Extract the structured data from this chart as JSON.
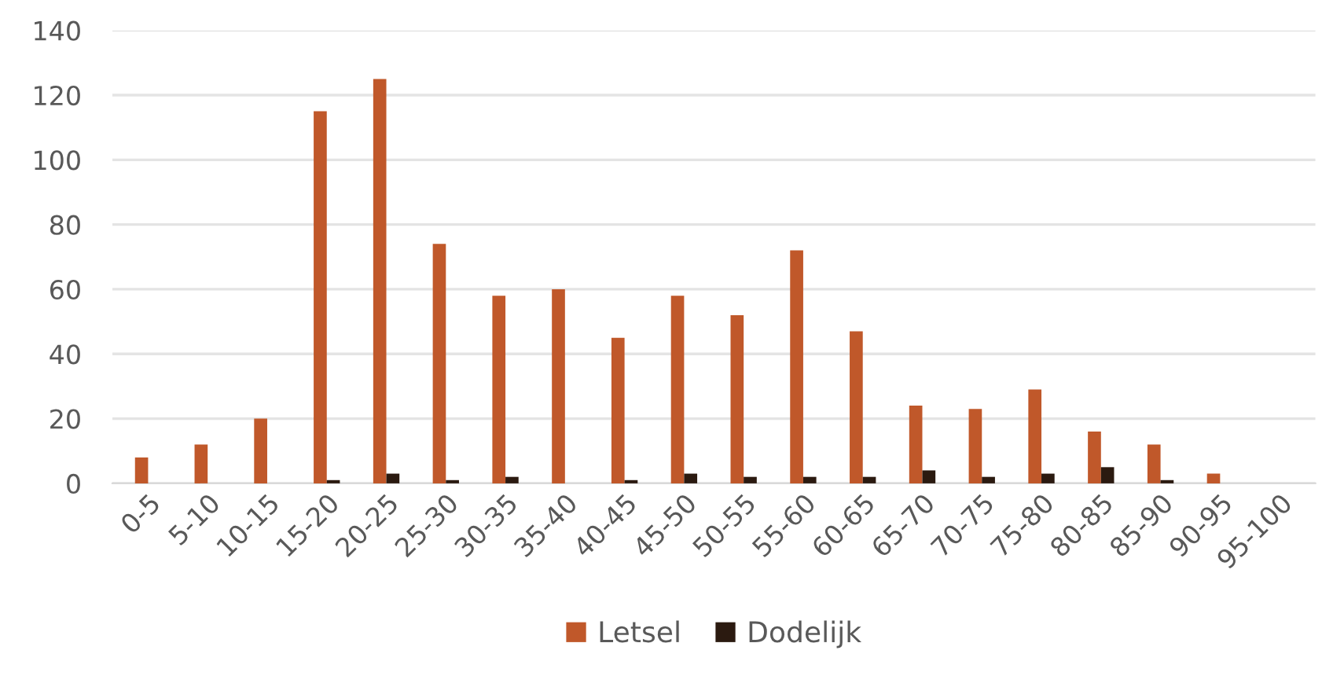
{
  "chart_data": {
    "type": "bar",
    "categories": [
      "0-5",
      "5-10",
      "10-15",
      "15-20",
      "20-25",
      "25-30",
      "30-35",
      "35-40",
      "40-45",
      "45-50",
      "50-55",
      "55-60",
      "60-65",
      "65-70",
      "70-75",
      "75-80",
      "80-85",
      "85-90",
      "90-95",
      "95-100"
    ],
    "series": [
      {
        "name": "Letsel",
        "color": "#c0582a",
        "values": [
          8,
          12,
          20,
          115,
          125,
          74,
          58,
          60,
          45,
          58,
          52,
          72,
          47,
          24,
          23,
          29,
          16,
          12,
          3,
          0
        ]
      },
      {
        "name": "Dodelijk",
        "color": "#2b1a10",
        "values": [
          0,
          0,
          0,
          1,
          3,
          1,
          2,
          0,
          1,
          3,
          2,
          2,
          2,
          4,
          2,
          3,
          5,
          1,
          0,
          0
        ]
      }
    ],
    "ylim": [
      0,
      140
    ],
    "yticks": [
      0,
      20,
      40,
      60,
      80,
      100,
      120,
      140
    ],
    "grid": "y",
    "legend": "bottom"
  }
}
